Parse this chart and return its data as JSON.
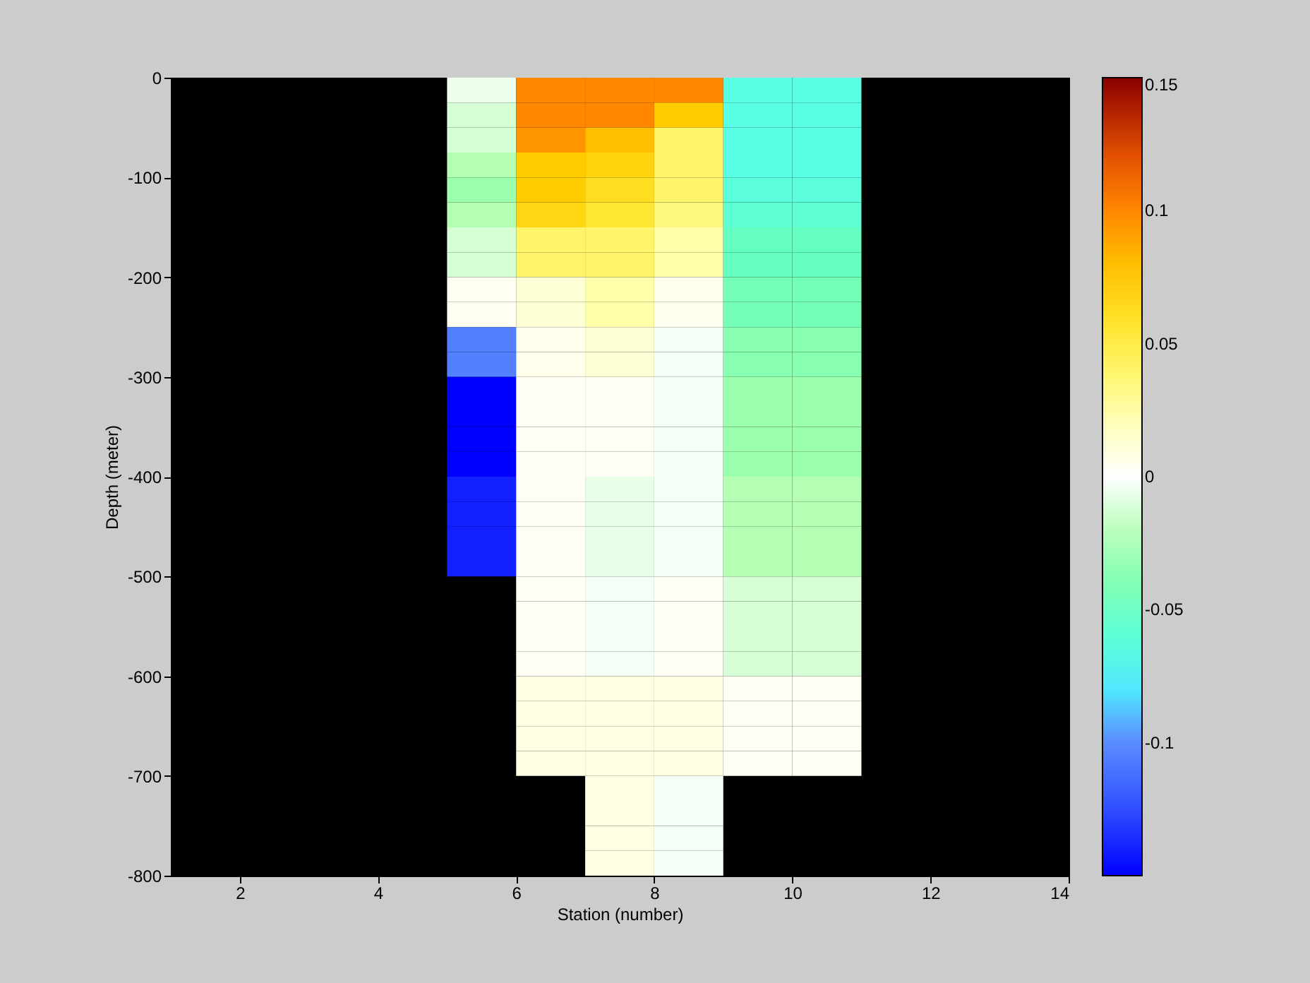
{
  "chart_data": {
    "type": "heatmap",
    "xlabel": "Station (number)",
    "ylabel": "Depth (meter)",
    "xlim": [
      1,
      14
    ],
    "xticks": [
      2,
      4,
      6,
      8,
      10,
      12,
      14
    ],
    "ylim": [
      -800,
      0
    ],
    "yticks": [
      -800,
      -700,
      -600,
      -500,
      -400,
      -300,
      -200,
      -100,
      0
    ],
    "clim": [
      -0.15,
      0.15
    ],
    "cticks": [
      -0.1,
      -0.05,
      0,
      0.05,
      0.1,
      0.15
    ],
    "cells": [
      [
        null,
        null,
        null,
        null,
        -0.005,
        0.1,
        0.1,
        0.1,
        -0.065,
        -0.065,
        null,
        null,
        null
      ],
      [
        null,
        null,
        null,
        null,
        -0.012,
        0.1,
        0.1,
        0.075,
        -0.065,
        -0.065,
        null,
        null,
        null
      ],
      [
        null,
        null,
        null,
        null,
        -0.012,
        0.095,
        0.08,
        0.04,
        -0.065,
        -0.065,
        null,
        null,
        null
      ],
      [
        null,
        null,
        null,
        null,
        -0.022,
        0.075,
        0.07,
        0.04,
        -0.065,
        -0.065,
        null,
        null,
        null
      ],
      [
        null,
        null,
        null,
        null,
        -0.03,
        0.075,
        0.062,
        0.04,
        -0.062,
        -0.062,
        null,
        null,
        null
      ],
      [
        null,
        null,
        null,
        null,
        -0.022,
        0.068,
        0.055,
        0.035,
        -0.058,
        -0.058,
        null,
        null,
        null
      ],
      [
        null,
        null,
        null,
        null,
        -0.012,
        0.04,
        0.04,
        0.025,
        -0.052,
        -0.052,
        null,
        null,
        null
      ],
      [
        null,
        null,
        null,
        null,
        -0.012,
        0.04,
        0.04,
        0.025,
        -0.052,
        -0.052,
        null,
        null,
        null
      ],
      [
        null,
        null,
        null,
        null,
        0.004,
        0.012,
        0.025,
        0.005,
        -0.045,
        -0.045,
        null,
        null,
        null
      ],
      [
        null,
        null,
        null,
        null,
        0.004,
        0.012,
        0.025,
        0.005,
        -0.045,
        -0.045,
        null,
        null,
        null
      ],
      [
        null,
        null,
        null,
        null,
        -0.105,
        0.006,
        0.012,
        -0.003,
        -0.037,
        -0.037,
        null,
        null,
        null
      ],
      [
        null,
        null,
        null,
        null,
        -0.105,
        0.006,
        0.012,
        -0.003,
        -0.037,
        -0.037,
        null,
        null,
        null
      ],
      [
        null,
        null,
        null,
        null,
        -0.15,
        0.003,
        0.003,
        -0.003,
        -0.03,
        -0.03,
        null,
        null,
        null
      ],
      [
        null,
        null,
        null,
        null,
        -0.15,
        0.003,
        0.003,
        -0.003,
        -0.03,
        -0.03,
        null,
        null,
        null
      ],
      [
        null,
        null,
        null,
        null,
        -0.15,
        0.003,
        0.003,
        -0.003,
        -0.03,
        -0.03,
        null,
        null,
        null
      ],
      [
        null,
        null,
        null,
        null,
        -0.15,
        0.003,
        0.003,
        -0.003,
        -0.03,
        -0.03,
        null,
        null,
        null
      ],
      [
        null,
        null,
        null,
        null,
        -0.14,
        0.003,
        -0.007,
        -0.003,
        -0.022,
        -0.022,
        null,
        null,
        null
      ],
      [
        null,
        null,
        null,
        null,
        -0.14,
        0.003,
        -0.007,
        -0.003,
        -0.022,
        -0.022,
        null,
        null,
        null
      ],
      [
        null,
        null,
        null,
        null,
        -0.14,
        0.003,
        -0.007,
        -0.003,
        -0.022,
        -0.022,
        null,
        null,
        null
      ],
      [
        null,
        null,
        null,
        null,
        -0.14,
        0.003,
        -0.007,
        -0.003,
        -0.022,
        -0.022,
        null,
        null,
        null
      ],
      [
        null,
        null,
        null,
        null,
        null,
        0.003,
        -0.003,
        0.003,
        -0.012,
        -0.012,
        null,
        null,
        null
      ],
      [
        null,
        null,
        null,
        null,
        null,
        0.003,
        -0.003,
        0.003,
        -0.012,
        -0.012,
        null,
        null,
        null
      ],
      [
        null,
        null,
        null,
        null,
        null,
        0.003,
        -0.003,
        0.003,
        -0.012,
        -0.012,
        null,
        null,
        null
      ],
      [
        null,
        null,
        null,
        null,
        null,
        0.003,
        -0.003,
        0.003,
        -0.012,
        -0.012,
        null,
        null,
        null
      ],
      [
        null,
        null,
        null,
        null,
        null,
        0.008,
        0.008,
        0.008,
        0.003,
        0.003,
        null,
        null,
        null
      ],
      [
        null,
        null,
        null,
        null,
        null,
        0.008,
        0.008,
        0.008,
        0.003,
        0.003,
        null,
        null,
        null
      ],
      [
        null,
        null,
        null,
        null,
        null,
        0.008,
        0.008,
        0.008,
        0.003,
        0.003,
        null,
        null,
        null
      ],
      [
        null,
        null,
        null,
        null,
        null,
        0.008,
        0.008,
        0.008,
        0.003,
        0.003,
        null,
        null,
        null
      ],
      [
        null,
        null,
        null,
        null,
        null,
        null,
        0.008,
        -0.003,
        null,
        null,
        null,
        null,
        null
      ],
      [
        null,
        null,
        null,
        null,
        null,
        null,
        0.008,
        -0.003,
        null,
        null,
        null,
        null,
        null
      ],
      [
        null,
        null,
        null,
        null,
        null,
        null,
        0.008,
        -0.003,
        null,
        null,
        null,
        null,
        null
      ],
      [
        null,
        null,
        null,
        null,
        null,
        null,
        0.008,
        -0.003,
        null,
        null,
        null,
        null,
        null
      ]
    ]
  }
}
